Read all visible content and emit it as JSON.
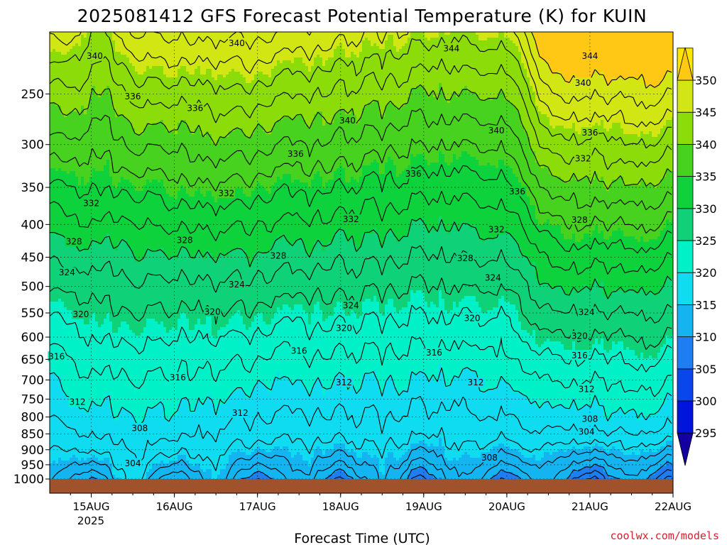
{
  "chart_data": {
    "type": "heatmap",
    "title": "2025081412 GFS Forecast Potential Temperature (K) for KUIN",
    "xlabel": "Forecast Time (UTC)",
    "x_ticks": [
      "15AUG",
      "16AUG",
      "17AUG",
      "18AUG",
      "19AUG",
      "20AUG",
      "21AUG",
      "22AUG"
    ],
    "x_year": "2025",
    "xlim": [
      "2025-08-14 12:00",
      "2025-08-22 00:00"
    ],
    "ylabel": "",
    "y_ticks": [
      250,
      300,
      350,
      400,
      450,
      500,
      550,
      600,
      650,
      700,
      750,
      800,
      850,
      900,
      950,
      1000
    ],
    "ylim": [
      1000,
      200
    ],
    "grid": true,
    "colorbar": {
      "levels": [
        295,
        300,
        305,
        310,
        315,
        320,
        325,
        330,
        335,
        340,
        345,
        350
      ],
      "labels": [
        "350",
        "345",
        "340",
        "335",
        "330",
        "325",
        "320",
        "315",
        "310",
        "305",
        "300",
        "295"
      ],
      "colors": [
        "#1400a0",
        "#0014dc",
        "#0a46eb",
        "#1e7df0",
        "#14b4f0",
        "#0fdcf0",
        "#00f0c8",
        "#0fd278",
        "#0ed23c",
        "#46d21e",
        "#8cdc0a",
        "#d2e614",
        "#ffe600",
        "#ffc814"
      ]
    },
    "contour_interval": 2,
    "contour_labels": [
      {
        "value": "340",
        "time": "2025-08-15 01:00",
        "p": 218
      },
      {
        "value": "340",
        "time": "2025-08-16 18:00",
        "p": 208
      },
      {
        "value": "344",
        "time": "2025-08-19 08:00",
        "p": 212
      },
      {
        "value": "344",
        "time": "2025-08-21 00:00",
        "p": 218
      },
      {
        "value": "340",
        "time": "2025-08-20 22:00",
        "p": 240
      },
      {
        "value": "336",
        "time": "2025-08-15 12:00",
        "p": 252
      },
      {
        "value": "336",
        "time": "2025-08-16 06:00",
        "p": 263
      },
      {
        "value": "340",
        "time": "2025-08-18 02:00",
        "p": 275
      },
      {
        "value": "340",
        "time": "2025-08-19 21:00",
        "p": 285
      },
      {
        "value": "336",
        "time": "2025-08-21 00:00",
        "p": 287
      },
      {
        "value": "336",
        "time": "2025-08-17 11:00",
        "p": 310
      },
      {
        "value": "332",
        "time": "2025-08-20 22:00",
        "p": 315
      },
      {
        "value": "336",
        "time": "2025-08-18 21:00",
        "p": 333
      },
      {
        "value": "336",
        "time": "2025-08-20 03:00",
        "p": 355
      },
      {
        "value": "332",
        "time": "2025-08-15 00:00",
        "p": 370
      },
      {
        "value": "332",
        "time": "2025-08-16 15:00",
        "p": 357
      },
      {
        "value": "332",
        "time": "2025-08-18 03:00",
        "p": 392
      },
      {
        "value": "328",
        "time": "2025-08-20 21:00",
        "p": 393
      },
      {
        "value": "332",
        "time": "2025-08-19 21:00",
        "p": 407
      },
      {
        "value": "328",
        "time": "2025-08-14 19:00",
        "p": 425
      },
      {
        "value": "328",
        "time": "2025-08-16 03:00",
        "p": 423
      },
      {
        "value": "328",
        "time": "2025-08-17 06:00",
        "p": 447
      },
      {
        "value": "328",
        "time": "2025-08-19 12:00",
        "p": 451
      },
      {
        "value": "324",
        "time": "2025-08-14 17:00",
        "p": 475
      },
      {
        "value": "324",
        "time": "2025-08-16 18:00",
        "p": 496
      },
      {
        "value": "324",
        "time": "2025-08-19 20:00",
        "p": 484
      },
      {
        "value": "324",
        "time": "2025-08-18 03:00",
        "p": 535
      },
      {
        "value": "324",
        "time": "2025-08-20 23:00",
        "p": 548
      },
      {
        "value": "320",
        "time": "2025-08-14 21:00",
        "p": 552
      },
      {
        "value": "320",
        "time": "2025-08-16 11:00",
        "p": 547
      },
      {
        "value": "320",
        "time": "2025-08-18 01:00",
        "p": 580
      },
      {
        "value": "320",
        "time": "2025-08-19 14:00",
        "p": 560
      },
      {
        "value": "320",
        "time": "2025-08-20 21:00",
        "p": 597
      },
      {
        "value": "316",
        "time": "2025-08-14 14:00",
        "p": 643
      },
      {
        "value": "316",
        "time": "2025-08-17 12:00",
        "p": 630
      },
      {
        "value": "316",
        "time": "2025-08-19 03:00",
        "p": 634
      },
      {
        "value": "316",
        "time": "2025-08-20 21:00",
        "p": 640
      },
      {
        "value": "316",
        "time": "2025-08-16 01:00",
        "p": 693
      },
      {
        "value": "312",
        "time": "2025-08-14 20:00",
        "p": 757
      },
      {
        "value": "312",
        "time": "2025-08-16 19:00",
        "p": 788
      },
      {
        "value": "312",
        "time": "2025-08-18 01:00",
        "p": 706
      },
      {
        "value": "312",
        "time": "2025-08-19 15:00",
        "p": 706
      },
      {
        "value": "312",
        "time": "2025-08-20 23:00",
        "p": 723
      },
      {
        "value": "308",
        "time": "2025-08-15 14:00",
        "p": 832
      },
      {
        "value": "308",
        "time": "2025-08-21 00:00",
        "p": 805
      },
      {
        "value": "304",
        "time": "2025-08-20 23:00",
        "p": 843
      },
      {
        "value": "304",
        "time": "2025-08-15 12:00",
        "p": 944
      },
      {
        "value": "308",
        "time": "2025-08-19 19:00",
        "p": 925
      }
    ],
    "ground_color": "#a0522d"
  },
  "credit": "coolwx.com/models"
}
